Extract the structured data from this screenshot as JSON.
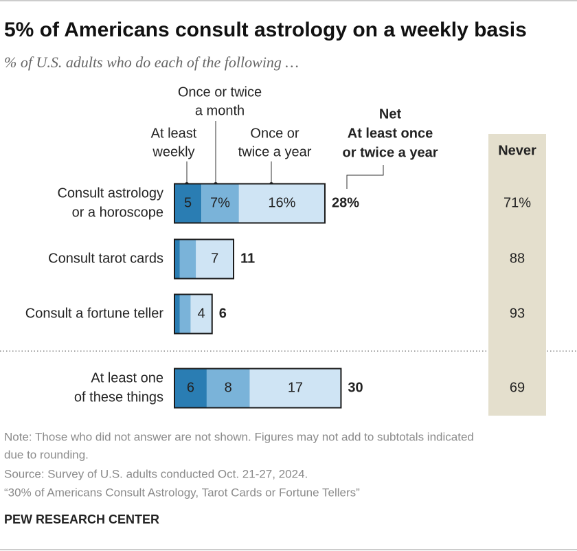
{
  "chart_data": {
    "type": "stacked-bar",
    "title": "5% of Americans consult astrology on a weekly basis",
    "subtitle": "% of U.S. adults who do each of the following …",
    "categories": [
      [
        "Consult astrology",
        "or a horoscope"
      ],
      [
        "Consult tarot cards"
      ],
      [
        "Consult a fortune teller"
      ],
      [
        "At least one",
        "of these things"
      ]
    ],
    "series": [
      {
        "name": [
          "At least",
          "weekly"
        ],
        "color": "#2a7db3",
        "values": [
          5,
          1,
          1,
          6
        ],
        "value_labels": [
          "5",
          null,
          null,
          "6"
        ]
      },
      {
        "name": [
          "Once or twice",
          "a month"
        ],
        "color": "#7ab3d9",
        "values": [
          7,
          3,
          2,
          8
        ],
        "value_labels": [
          "7%",
          null,
          null,
          "8"
        ]
      },
      {
        "name": [
          "Once or",
          "twice a year"
        ],
        "color": "#cfe4f4",
        "values": [
          16,
          7,
          4,
          17
        ],
        "value_labels": [
          "16%",
          "7",
          "4",
          "17"
        ]
      }
    ],
    "net": {
      "name": [
        "Net",
        "At least once",
        "or twice a year"
      ],
      "values": [
        28,
        11,
        6,
        30
      ],
      "value_labels": [
        "28%",
        "11",
        "6",
        "30"
      ]
    },
    "never": {
      "name": "Never",
      "color": "#e4dfcd",
      "values": [
        71,
        88,
        93,
        69
      ],
      "value_labels": [
        "71%",
        "88",
        "93",
        "69"
      ]
    },
    "note": [
      "Note: Those who did not answer are not shown. Figures may not add to subtotals indicated",
      "due to rounding."
    ],
    "source": "Source: Survey of U.S. adults conducted Oct. 21-27, 2024.",
    "report": "“30% of Americans Consult Astrology, Tarot Cards or Fortune Tellers”",
    "brand": "PEW RESEARCH CENTER"
  }
}
